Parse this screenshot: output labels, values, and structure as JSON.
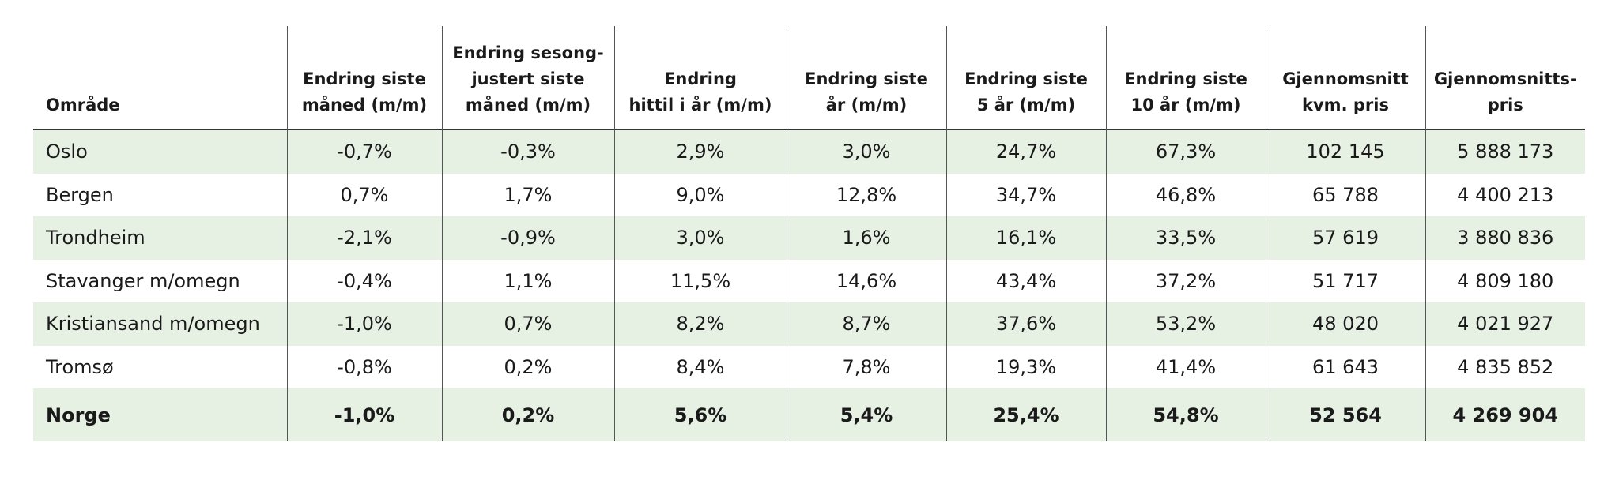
{
  "table": {
    "headers": [
      [
        "Område"
      ],
      [
        "Endring siste",
        "måned (m/m)"
      ],
      [
        "Endring sesong-",
        "justert siste",
        "måned (m/m)"
      ],
      [
        "Endring",
        "hittil i år (m/m)"
      ],
      [
        "Endring siste",
        "år (m/m)"
      ],
      [
        "Endring siste",
        "5 år (m/m)"
      ],
      [
        "Endring siste",
        "10 år (m/m)"
      ],
      [
        "Gjennomsnitt",
        "kvm. pris"
      ],
      [
        "Gjennomsnitts-",
        "pris"
      ]
    ],
    "rows": [
      [
        "Oslo",
        "-0,7%",
        "-0,3%",
        "2,9%",
        "3,0%",
        "24,7%",
        "67,3%",
        "102 145",
        "5 888 173"
      ],
      [
        "Bergen",
        "0,7%",
        "1,7%",
        "9,0%",
        "12,8%",
        "34,7%",
        "46,8%",
        "65 788",
        "4 400 213"
      ],
      [
        "Trondheim",
        "-2,1%",
        "-0,9%",
        "3,0%",
        "1,6%",
        "16,1%",
        "33,5%",
        "57 619",
        "3 880 836"
      ],
      [
        "Stavanger m/omegn",
        "-0,4%",
        "1,1%",
        "11,5%",
        "14,6%",
        "43,4%",
        "37,2%",
        "51 717",
        "4 809 180"
      ],
      [
        "Kristiansand m/omegn",
        "-1,0%",
        "0,7%",
        "8,2%",
        "8,7%",
        "37,6%",
        "53,2%",
        "48 020",
        "4 021 927"
      ],
      [
        "Tromsø",
        "-0,8%",
        "0,2%",
        "8,4%",
        "7,8%",
        "19,3%",
        "41,4%",
        "61 643",
        "4 835 852"
      ]
    ],
    "total": [
      "Norge",
      "-1,0%",
      "0,2%",
      "5,6%",
      "5,4%",
      "25,4%",
      "54,8%",
      "52 564",
      "4 269 904"
    ]
  },
  "colors": {
    "row_shade": "#e6f1e4",
    "rule": "#333333"
  }
}
